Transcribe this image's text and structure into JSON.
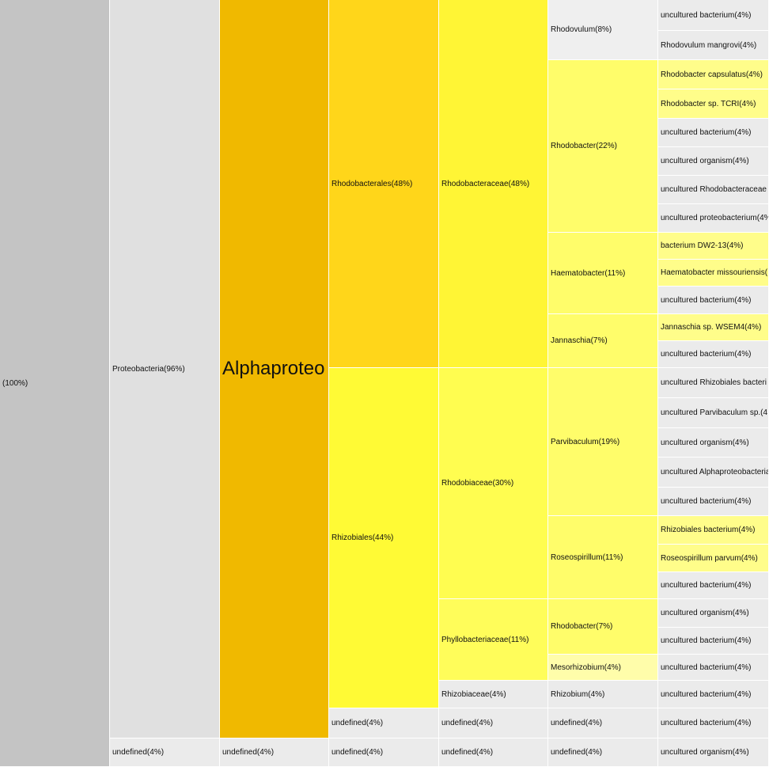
{
  "chart_data": {
    "type": "icicle",
    "nodes": [
      {
        "label": "(100%)",
        "depth": 0,
        "start": 0,
        "end": 969,
        "color": "#c4c4c4"
      },
      {
        "label": "Proteobacteria(96%)",
        "depth": 1,
        "start": 0,
        "end": 933,
        "color": "#e0e0e0"
      },
      {
        "label": "undefined(4%)",
        "depth": 1,
        "start": 933,
        "end": 969,
        "color": "#ebebeb"
      },
      {
        "label": "Alphaproteo",
        "depth": 2,
        "start": 0,
        "end": 933,
        "color": "#f0b900",
        "big": true
      },
      {
        "label": "undefined(4%)",
        "depth": 2,
        "start": 933,
        "end": 969,
        "color": "#ebebeb"
      },
      {
        "label": "Rhodobacterales(48%)",
        "depth": 3,
        "start": 0,
        "end": 465,
        "color": "#ffd61a"
      },
      {
        "label": "Rhizobiales(44%)",
        "depth": 3,
        "start": 465,
        "end": 895,
        "color": "#fffa35"
      },
      {
        "label": "undefined(4%)",
        "depth": 3,
        "start": 895,
        "end": 933,
        "color": "#ebebeb"
      },
      {
        "label": "undefined(4%)",
        "depth": 3,
        "start": 933,
        "end": 969,
        "color": "#ebebeb"
      },
      {
        "label": "Rhodobacteraceae(48%)",
        "depth": 4,
        "start": 0,
        "end": 465,
        "color": "#fff535"
      },
      {
        "label": "Rhodobiaceae(30%)",
        "depth": 4,
        "start": 465,
        "end": 757,
        "color": "#fffd50"
      },
      {
        "label": "Phyllobacteriaceae(11%)",
        "depth": 4,
        "start": 757,
        "end": 860,
        "color": "#fffd5a"
      },
      {
        "label": "Rhizobiaceae(4%)",
        "depth": 4,
        "start": 860,
        "end": 895,
        "color": "#ebebeb"
      },
      {
        "label": "undefined(4%)",
        "depth": 4,
        "start": 895,
        "end": 933,
        "color": "#ebebeb"
      },
      {
        "label": "undefined(4%)",
        "depth": 4,
        "start": 933,
        "end": 969,
        "color": "#ebebeb"
      },
      {
        "label": "Rhodovulum(8%)",
        "depth": 5,
        "start": 0,
        "end": 76,
        "color": "#efefef"
      },
      {
        "label": "Rhodobacter(22%)",
        "depth": 5,
        "start": 76,
        "end": 294,
        "color": "#fffd6a"
      },
      {
        "label": "Haematobacter(11%)",
        "depth": 5,
        "start": 294,
        "end": 397,
        "color": "#fffd6a"
      },
      {
        "label": "Jannaschia(7%)",
        "depth": 5,
        "start": 397,
        "end": 465,
        "color": "#fffd6a"
      },
      {
        "label": "Parvibaculum(19%)",
        "depth": 5,
        "start": 465,
        "end": 652,
        "color": "#fffd6a"
      },
      {
        "label": "Roseospirillum(11%)",
        "depth": 5,
        "start": 652,
        "end": 757,
        "color": "#fffd6a"
      },
      {
        "label": "Rhodobacter(7%)",
        "depth": 5,
        "start": 757,
        "end": 827,
        "color": "#fffd6a"
      },
      {
        "label": "Mesorhizobium(4%)",
        "depth": 5,
        "start": 827,
        "end": 860,
        "color": "#fffdaa"
      },
      {
        "label": "Rhizobium(4%)",
        "depth": 5,
        "start": 860,
        "end": 895,
        "color": "#ebebeb"
      },
      {
        "label": "undefined(4%)",
        "depth": 5,
        "start": 895,
        "end": 933,
        "color": "#ebebeb"
      },
      {
        "label": "undefined(4%)",
        "depth": 5,
        "start": 933,
        "end": 969,
        "color": "#ebebeb"
      },
      {
        "label": "uncultured bacterium(4%)",
        "depth": 6,
        "start": 0,
        "end": 39,
        "color": "#ebebeb"
      },
      {
        "label": "Rhodovulum mangrovi(4%)",
        "depth": 6,
        "start": 39,
        "end": 76,
        "color": "#ebebeb"
      },
      {
        "label": "Rhodobacter capsulatus(4%)",
        "depth": 6,
        "start": 76,
        "end": 113,
        "color": "#fffd8a"
      },
      {
        "label": "Rhodobacter sp. TCRI(4%)",
        "depth": 6,
        "start": 113,
        "end": 150,
        "color": "#fffd8a"
      },
      {
        "label": "uncultured bacterium(4%)",
        "depth": 6,
        "start": 150,
        "end": 186,
        "color": "#ebebeb"
      },
      {
        "label": "uncultured organism(4%)",
        "depth": 6,
        "start": 186,
        "end": 222,
        "color": "#ebebeb"
      },
      {
        "label": "uncultured Rhodobacteraceae",
        "depth": 6,
        "start": 222,
        "end": 258,
        "color": "#ebebeb"
      },
      {
        "label": "uncultured proteobacterium(4%",
        "depth": 6,
        "start": 258,
        "end": 294,
        "color": "#ebebeb"
      },
      {
        "label": "bacterium DW2-13(4%)",
        "depth": 6,
        "start": 294,
        "end": 328,
        "color": "#fffd8a"
      },
      {
        "label": "Haematobacter missouriensis(",
        "depth": 6,
        "start": 328,
        "end": 362,
        "color": "#fffd8a"
      },
      {
        "label": "uncultured bacterium(4%)",
        "depth": 6,
        "start": 362,
        "end": 397,
        "color": "#ebebeb"
      },
      {
        "label": "Jannaschia sp. WSEM4(4%)",
        "depth": 6,
        "start": 397,
        "end": 431,
        "color": "#fffd8a"
      },
      {
        "label": "uncultured bacterium(4%)",
        "depth": 6,
        "start": 431,
        "end": 465,
        "color": "#ebebeb"
      },
      {
        "label": "uncultured Rhizobiales bacteri",
        "depth": 6,
        "start": 465,
        "end": 503,
        "color": "#ebebeb"
      },
      {
        "label": "uncultured Parvibaculum sp.(4",
        "depth": 6,
        "start": 503,
        "end": 541,
        "color": "#ebebeb"
      },
      {
        "label": "uncultured organism(4%)",
        "depth": 6,
        "start": 541,
        "end": 578,
        "color": "#ebebeb"
      },
      {
        "label": "uncultured Alphaproteobacteria",
        "depth": 6,
        "start": 578,
        "end": 616,
        "color": "#ebebeb"
      },
      {
        "label": "uncultured bacterium(4%)",
        "depth": 6,
        "start": 616,
        "end": 652,
        "color": "#ebebeb"
      },
      {
        "label": "Rhizobiales bacterium(4%)",
        "depth": 6,
        "start": 652,
        "end": 688,
        "color": "#fffd8a"
      },
      {
        "label": "Roseospirillum parvum(4%)",
        "depth": 6,
        "start": 688,
        "end": 723,
        "color": "#fffd8a"
      },
      {
        "label": "uncultured bacterium(4%)",
        "depth": 6,
        "start": 723,
        "end": 757,
        "color": "#ebebeb"
      },
      {
        "label": "uncultured organism(4%)",
        "depth": 6,
        "start": 757,
        "end": 793,
        "color": "#ebebeb"
      },
      {
        "label": "uncultured bacterium(4%)",
        "depth": 6,
        "start": 793,
        "end": 827,
        "color": "#ebebeb"
      },
      {
        "label": "uncultured bacterium(4%)",
        "depth": 6,
        "start": 827,
        "end": 860,
        "color": "#ebebeb"
      },
      {
        "label": "uncultured bacterium(4%)",
        "depth": 6,
        "start": 860,
        "end": 895,
        "color": "#ebebeb"
      },
      {
        "label": "uncultured bacterium(4%)",
        "depth": 6,
        "start": 895,
        "end": 933,
        "color": "#ebebeb"
      },
      {
        "label": "uncultured organism(4%)",
        "depth": 6,
        "start": 933,
        "end": 969,
        "color": "#ebebeb"
      }
    ]
  }
}
